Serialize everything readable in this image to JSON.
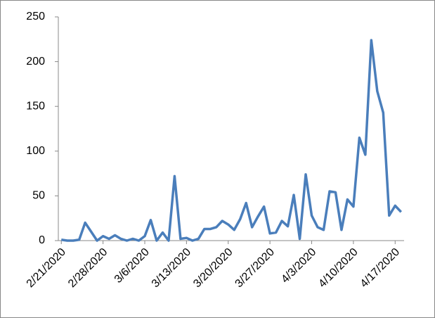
{
  "chart_data": {
    "type": "line",
    "categories": [
      "2/21/2020",
      null,
      null,
      null,
      null,
      null,
      null,
      "2/28/2020",
      null,
      null,
      null,
      null,
      null,
      null,
      "3/6/2020",
      null,
      null,
      null,
      null,
      null,
      null,
      "3/13/2020",
      null,
      null,
      null,
      null,
      null,
      null,
      "3/20/2020",
      null,
      null,
      null,
      null,
      null,
      null,
      "3/27/2020",
      null,
      null,
      null,
      null,
      null,
      null,
      "4/3/2020",
      null,
      null,
      null,
      null,
      null,
      null,
      "4/10/2020",
      null,
      null,
      null,
      null,
      null,
      null,
      "4/17/2020",
      null
    ],
    "series": [
      {
        "color": "#4a7ebb",
        "values": [
          1,
          0,
          0,
          1,
          20,
          10,
          0,
          5,
          2,
          6,
          2,
          0,
          2,
          0,
          5,
          23,
          0,
          9,
          0,
          72,
          2,
          3,
          0,
          2,
          13,
          13,
          15,
          22,
          18,
          12,
          24,
          42,
          15,
          27,
          38,
          8,
          9,
          22,
          16,
          51,
          2,
          74,
          28,
          15,
          12,
          55,
          54,
          12,
          46,
          38,
          115,
          96,
          224,
          167,
          143,
          28,
          39,
          32
        ]
      }
    ],
    "ylim": [
      0,
      250
    ],
    "yticks": [
      0,
      50,
      100,
      150,
      200,
      250
    ],
    "grid": false
  }
}
